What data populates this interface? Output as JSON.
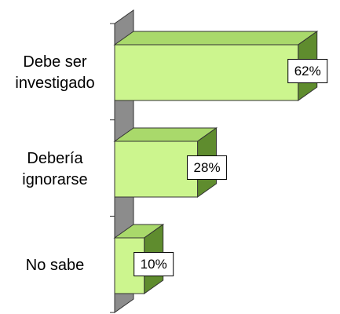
{
  "chart_data": {
    "type": "bar3d_horizontal",
    "categories": [
      "Debe ser investigado",
      "Debería ignorarse",
      "No sabe"
    ],
    "values": [
      62,
      28,
      10
    ],
    "value_labels": [
      "62%",
      "28%",
      "10%"
    ],
    "color": "#ccf58e"
  }
}
